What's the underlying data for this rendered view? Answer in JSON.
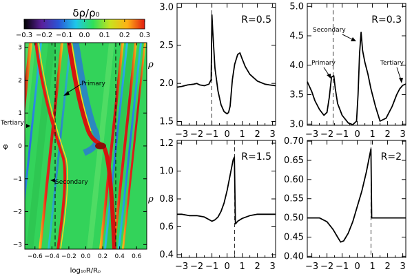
{
  "colorbar": {
    "label": "δρ/ρ₀",
    "ticks": [
      "−0.3",
      "−0.2",
      "−0.1",
      "0.0",
      "0.1",
      "0.2",
      "0.3"
    ],
    "colors": [
      "#000000",
      "#5a1f9a",
      "#2a55d6",
      "#1ec7ea",
      "#2fe05a",
      "#c8e21f",
      "#ffb015",
      "#e11b10"
    ]
  },
  "map_panel": {
    "xlabel": "log₁₀R/Rₚ",
    "ylabel": "φ",
    "xticks": [
      "−0.6",
      "−0.4",
      "−0.2",
      "0.0",
      "0.2",
      "0.4",
      "0.6"
    ],
    "yticks": [
      "−3",
      "−2",
      "−1",
      "0",
      "1",
      "2",
      "3"
    ],
    "xlim": [
      -0.72,
      0.72
    ],
    "ylim": [
      -3.14,
      3.14
    ],
    "background": "#33d35a",
    "annotations": [
      "Primary",
      "Secondary",
      "Tertiary"
    ]
  },
  "chart_data": [
    {
      "type": "line",
      "label": "R=0.5",
      "ylabel": "ρ",
      "xlim": [
        -3.3,
        3.2
      ],
      "ylim": [
        1.45,
        3.05
      ],
      "xticks": [
        "−3",
        "−2",
        "−1",
        "0",
        "1",
        "2",
        "3"
      ],
      "yticks": [
        "1.5",
        "2.0",
        "2.5",
        "3.0"
      ],
      "ytick_values": [
        1.5,
        2.0,
        2.5,
        3.0
      ],
      "vline": -1.0,
      "series": [
        {
          "x": [
            -3.3,
            -3.0,
            -2.6,
            -2.2,
            -2.0,
            -1.8,
            -1.5,
            -1.2,
            -1.05,
            -1.0,
            -0.95,
            -0.8,
            -0.6,
            -0.4,
            -0.2,
            0.0,
            0.1,
            0.2,
            0.35,
            0.5,
            0.7,
            0.85,
            1.0,
            1.2,
            1.5,
            2.0,
            2.5,
            2.8,
            3.2
          ],
          "y": [
            1.95,
            1.96,
            1.98,
            1.99,
            2.0,
            1.98,
            1.97,
            1.99,
            2.05,
            2.9,
            2.7,
            2.2,
            1.9,
            1.72,
            1.63,
            1.6,
            1.62,
            1.7,
            2.05,
            2.25,
            2.38,
            2.4,
            2.32,
            2.22,
            2.12,
            2.03,
            1.99,
            1.98,
            1.97
          ]
        }
      ]
    },
    {
      "type": "line",
      "label": "R=0.3",
      "xlim": [
        -3.3,
        3.2
      ],
      "ylim": [
        2.98,
        5.05
      ],
      "xticks": [
        "−3",
        "−2",
        "−1",
        "0",
        "1",
        "2",
        "3"
      ],
      "yticks": [
        "3.0",
        "3.5",
        "4.0",
        "4.5",
        "5.0"
      ],
      "ytick_values": [
        3.0,
        3.5,
        4.0,
        4.5,
        5.0
      ],
      "vline": -1.6,
      "annotations": [
        "Secondary",
        "Primary",
        "Tertiary"
      ],
      "series": [
        {
          "x": [
            -3.3,
            -3.0,
            -2.8,
            -2.5,
            -2.2,
            -2.0,
            -1.85,
            -1.7,
            -1.55,
            -1.45,
            -1.3,
            -1.0,
            -0.6,
            -0.3,
            -0.05,
            0.05,
            0.15,
            0.25,
            0.35,
            0.5,
            0.7,
            0.9,
            1.2,
            1.5,
            1.9,
            2.3,
            2.6,
            2.8,
            3.0,
            3.2
          ],
          "y": [
            3.72,
            3.55,
            3.4,
            3.25,
            3.15,
            3.2,
            3.45,
            3.8,
            3.82,
            3.6,
            3.35,
            3.15,
            3.02,
            2.99,
            3.05,
            3.5,
            4.2,
            4.56,
            4.25,
            4.05,
            3.85,
            3.6,
            3.3,
            3.05,
            3.1,
            3.3,
            3.5,
            3.6,
            3.66,
            3.68
          ]
        }
      ]
    },
    {
      "type": "line",
      "label": "R=1.5",
      "ylabel": "ρ",
      "xlim": [
        -3.3,
        3.2
      ],
      "ylim": [
        0.38,
        1.22
      ],
      "xticks": [
        "−3",
        "−2",
        "−1",
        "0",
        "1",
        "2",
        "3"
      ],
      "yticks": [
        "0.4",
        "0.6",
        "0.8",
        "1.0",
        "1.2"
      ],
      "ytick_values": [
        0.4,
        0.6,
        0.8,
        1.0,
        1.2
      ],
      "vline": 0.5,
      "series": [
        {
          "x": [
            -3.3,
            -3.0,
            -2.5,
            -2.0,
            -1.5,
            -1.0,
            -0.8,
            -0.6,
            -0.4,
            -0.2,
            0.0,
            0.2,
            0.4,
            0.48,
            0.55,
            0.7,
            1.0,
            1.5,
            2.0,
            2.5,
            3.0,
            3.2
          ],
          "y": [
            0.69,
            0.69,
            0.68,
            0.68,
            0.67,
            0.64,
            0.65,
            0.67,
            0.71,
            0.77,
            0.86,
            0.97,
            1.08,
            1.1,
            0.62,
            0.64,
            0.66,
            0.68,
            0.69,
            0.69,
            0.69,
            0.69
          ]
        }
      ]
    },
    {
      "type": "line",
      "label": "R=2",
      "xlim": [
        -3.3,
        3.2
      ],
      "ylim": [
        0.397,
        0.702
      ],
      "xticks": [
        "−3",
        "−2",
        "−1",
        "0",
        "1",
        "2",
        "3"
      ],
      "yticks": [
        "0.40",
        "0.45",
        "0.50",
        "0.55",
        "0.60",
        "0.65",
        "0.70"
      ],
      "ytick_values": [
        0.4,
        0.45,
        0.5,
        0.55,
        0.6,
        0.65,
        0.7
      ],
      "vline": 0.9,
      "series": [
        {
          "x": [
            -3.3,
            -3.0,
            -2.5,
            -2.0,
            -1.6,
            -1.3,
            -1.1,
            -0.9,
            -0.6,
            -0.3,
            0.0,
            0.3,
            0.6,
            0.8,
            0.9,
            0.95,
            1.1,
            1.5,
            2.0,
            2.5,
            3.0,
            3.2
          ],
          "y": [
            0.5,
            0.5,
            0.5,
            0.49,
            0.47,
            0.45,
            0.437,
            0.44,
            0.46,
            0.49,
            0.53,
            0.57,
            0.62,
            0.66,
            0.68,
            0.5,
            0.5,
            0.5,
            0.5,
            0.5,
            0.5,
            0.5
          ]
        }
      ]
    }
  ]
}
